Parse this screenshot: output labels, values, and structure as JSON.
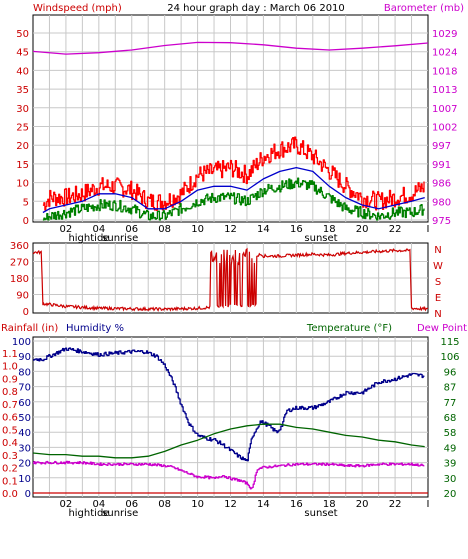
{
  "colors": {
    "windspeed": "#cc0000",
    "barometer": "#cc00cc",
    "gust": "#ff0000",
    "avgwind": "#0000cc",
    "wind": "#008000",
    "winddir": "#cc0000",
    "rainfall": "#cc0000",
    "humidity": "#00008b",
    "temperature": "#006400",
    "dewpoint": "#cc00cc",
    "grid": "#c8c8c8",
    "axis": "#000000"
  },
  "chart_data": [
    {
      "type": "line",
      "title": "24 hour graph day : March 06 2010",
      "ylabel_left": "Windspeed (mph)",
      "ylabel_right": "Barometer (mb)",
      "xlim": [
        0,
        24
      ],
      "x_ticks": [
        "02",
        "04",
        "06",
        "08",
        "10",
        "12",
        "14",
        "16",
        "18",
        "20",
        "22",
        "I"
      ],
      "x_tick_positions": [
        2,
        4,
        6,
        8,
        10,
        12,
        14,
        16,
        18,
        20,
        22,
        24
      ],
      "marker_labels": [
        {
          "x": 3.4,
          "text": "hightide"
        },
        {
          "x": 5.3,
          "text": "sunrise"
        },
        {
          "x": 17.5,
          "text": "sunset"
        }
      ],
      "ylim_left": [
        0,
        50
      ],
      "yticks_left": [
        "0",
        "5",
        "10",
        "15",
        "20",
        "25",
        "30",
        "35",
        "40",
        "45",
        "50"
      ],
      "ylim_right": [
        975,
        1029
      ],
      "yticks_right": [
        "975",
        "980",
        "986",
        "991",
        "997",
        "1002",
        "1007",
        "1013",
        "1018",
        "1024",
        "1029"
      ],
      "series": [
        {
          "key": "gust",
          "axis": "left",
          "style": "spiky",
          "x": [
            0.6,
            1,
            2,
            3,
            4,
            5,
            6,
            7,
            8,
            9,
            10,
            11,
            12,
            13,
            14,
            15,
            16,
            17,
            18,
            19,
            20,
            21,
            22,
            23,
            23.8
          ],
          "values": [
            4,
            6,
            6,
            7,
            9,
            9,
            8,
            5,
            5,
            7,
            12,
            13,
            14,
            12,
            17,
            19,
            20,
            17,
            13,
            9,
            6,
            5,
            6,
            7,
            9
          ]
        },
        {
          "key": "avg",
          "axis": "left",
          "style": "smooth",
          "x": [
            0.6,
            1,
            2,
            3,
            4,
            5,
            6,
            7,
            8,
            9,
            10,
            11,
            12,
            13,
            14,
            15,
            16,
            17,
            18,
            19,
            20,
            21,
            22,
            23,
            23.8
          ],
          "values": [
            2,
            3,
            4,
            5,
            7,
            7,
            6,
            3,
            3,
            5,
            8,
            9,
            9,
            8,
            11,
            13,
            14,
            13,
            9,
            6,
            4,
            3,
            4,
            5,
            6
          ]
        },
        {
          "key": "wind",
          "axis": "left",
          "style": "spiky",
          "x": [
            0.6,
            1,
            2,
            3,
            4,
            5,
            6,
            7,
            8,
            9,
            10,
            11,
            12,
            13,
            14,
            15,
            16,
            17,
            18,
            19,
            20,
            21,
            22,
            23,
            23.8
          ],
          "values": [
            0,
            1,
            2,
            3,
            4,
            4,
            3,
            1,
            1,
            3,
            5,
            6,
            6,
            5,
            8,
            9,
            10,
            9,
            6,
            3,
            2,
            1,
            2,
            2,
            3
          ]
        },
        {
          "key": "barometer",
          "axis": "right",
          "style": "smooth",
          "x": [
            0,
            2,
            4,
            6,
            8,
            10,
            12,
            14,
            16,
            18,
            20,
            22,
            24
          ],
          "values": [
            1023.7,
            1022.9,
            1023.3,
            1024.1,
            1025.4,
            1026.3,
            1026.2,
            1025.6,
            1024.6,
            1024.1,
            1024.6,
            1025.3,
            1026.1
          ]
        }
      ]
    },
    {
      "type": "line",
      "title": "",
      "ylabel_right_letters": [
        "N",
        "W",
        "S",
        "E",
        "N"
      ],
      "xlim": [
        0,
        24
      ],
      "ylim": [
        0,
        360
      ],
      "yticks": [
        "360",
        "270",
        "180",
        "90",
        "0"
      ],
      "series": [
        {
          "key": "winddir",
          "style": "direction",
          "x": [
            0,
            0.5,
            0.6,
            2,
            4,
            6,
            8,
            9,
            10,
            10.8,
            11,
            12,
            13,
            13.1,
            13.5,
            13.9,
            14,
            15,
            16,
            17,
            18,
            19,
            20,
            21,
            22,
            22.9,
            23,
            24
          ],
          "values": [
            320,
            320,
            40,
            25,
            15,
            12,
            10,
            12,
            15,
            20,
            230,
            240,
            250,
            330,
            300,
            310,
            300,
            300,
            305,
            310,
            305,
            315,
            320,
            325,
            330,
            330,
            15,
            10
          ]
        }
      ]
    },
    {
      "type": "line",
      "ylabel_left_1": "Rainfall (in)",
      "ylabel_left_2": "Humidity %",
      "ylabel_right": "Temperature (°F)",
      "ylabel_right_2": "Dew Point",
      "xlim": [
        0,
        24
      ],
      "yticks_rain": [
        "0.0",
        "0.1",
        "0.2",
        "0.3",
        "0.4",
        "0.5",
        "0.6",
        "0.7",
        "0.8",
        "0.9",
        "1.0",
        "1.1"
      ],
      "yticks_humidity": [
        "0",
        "10",
        "20",
        "30",
        "40",
        "50",
        "60",
        "70",
        "80",
        "90",
        "100"
      ],
      "ylim_humidity": [
        0,
        100
      ],
      "yticks_temp": [
        "20",
        "30",
        "39",
        "49",
        "58",
        "68",
        "77",
        "87",
        "96",
        "106",
        "115"
      ],
      "ylim_temp": [
        20,
        115
      ],
      "x_ticks": [
        "02",
        "04",
        "06",
        "08",
        "10",
        "12",
        "14",
        "16",
        "18",
        "20",
        "22",
        "I"
      ],
      "x_tick_positions": [
        2,
        4,
        6,
        8,
        10,
        12,
        14,
        16,
        18,
        20,
        22,
        24
      ],
      "marker_labels": [
        {
          "x": 3.4,
          "text": "hightide"
        },
        {
          "x": 5.3,
          "text": "sunrise"
        },
        {
          "x": 17.5,
          "text": "sunset"
        }
      ],
      "series": [
        {
          "key": "rainfall",
          "axis": "humidity",
          "style": "smooth",
          "x": [
            0,
            24
          ],
          "values": [
            0,
            0
          ]
        },
        {
          "key": "humidity",
          "axis": "humidity",
          "style": "spiky",
          "x": [
            0,
            0.6,
            1,
            2,
            3,
            4,
            5,
            6,
            6.8,
            7.5,
            8,
            8.5,
            9,
            9.5,
            10,
            10.5,
            11,
            11.5,
            12,
            12.5,
            13,
            13.3,
            13.8,
            14.2,
            14.8,
            15.1,
            15.4,
            16,
            17,
            18,
            19,
            20,
            21,
            22,
            23,
            23.8
          ],
          "values": [
            88,
            88,
            90,
            95,
            93,
            91,
            92,
            93,
            93,
            90,
            84,
            73,
            58,
            45,
            38,
            36,
            35,
            32,
            28,
            24,
            21,
            37,
            47,
            45,
            40,
            44,
            54,
            56,
            56,
            60,
            66,
            66,
            73,
            75,
            78,
            77
          ]
        },
        {
          "key": "temperature",
          "axis": "temp",
          "style": "smooth",
          "x": [
            0,
            1,
            2,
            3,
            4,
            5,
            6,
            7,
            8,
            9,
            10,
            11,
            12,
            13,
            14,
            15,
            16,
            17,
            18,
            19,
            20,
            21,
            22,
            23,
            23.8
          ],
          "values": [
            45,
            44,
            44,
            43,
            43,
            42,
            42,
            43,
            46,
            50,
            53,
            57,
            60,
            62,
            63,
            63,
            61,
            60,
            58,
            56,
            55,
            53,
            52,
            50,
            49
          ]
        },
        {
          "key": "dewpoint",
          "axis": "temp",
          "style": "spiky",
          "x": [
            0,
            1,
            2,
            3,
            4,
            5,
            6,
            7,
            8,
            8.5,
            9,
            9.5,
            10,
            10.5,
            11,
            11.5,
            12,
            12.5,
            13,
            13.3,
            13.6,
            14,
            15,
            16,
            17,
            18,
            19,
            20,
            21,
            22,
            23,
            23.8
          ],
          "values": [
            39,
            39,
            39,
            39,
            38,
            38,
            38,
            38,
            37,
            36,
            34,
            32,
            30,
            30,
            29,
            31,
            29,
            28,
            26,
            22,
            35,
            36,
            37,
            38,
            38,
            38,
            37,
            37,
            38,
            38,
            38,
            37
          ]
        }
      ]
    }
  ]
}
